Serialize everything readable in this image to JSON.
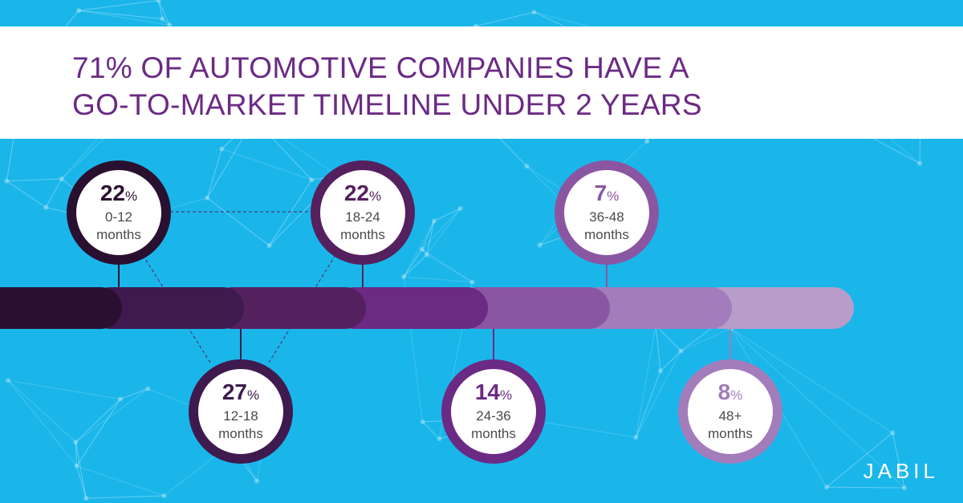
{
  "title": {
    "line1": "71% OF AUTOMOTIVE COMPANIES HAVE A",
    "line2": "GO-TO-MARKET TIMELINE UNDER 2 YEARS"
  },
  "logo": "JABIL",
  "colors": {
    "background": "#1ab6ea",
    "title": "#6b2a84",
    "segments": [
      "#2a1030",
      "#3e1a4e",
      "#55205e",
      "#6b2a84",
      "#8a56a2",
      "#a37cbb",
      "#b89dcb"
    ]
  },
  "chart_data": {
    "type": "bar",
    "categories": [
      "0-12 months",
      "12-18 months",
      "18-24 months",
      "24-36 months",
      "36-48 months",
      "48+ months"
    ],
    "values": [
      22,
      27,
      22,
      14,
      7,
      8
    ],
    "unit": "%",
    "title": "71% OF AUTOMOTIVE COMPANIES HAVE A GO-TO-MARKET TIMELINE UNDER 2 YEARS",
    "items": [
      {
        "value": 22,
        "percent_sign": "%",
        "range": "0-12",
        "unit": "months",
        "position": "above",
        "color": "#2a1030",
        "value_color": "#2a1030"
      },
      {
        "value": 27,
        "percent_sign": "%",
        "range": "12-18",
        "unit": "months",
        "position": "below",
        "color": "#3e1a4e",
        "value_color": "#3e1a4e"
      },
      {
        "value": 22,
        "percent_sign": "%",
        "range": "18-24",
        "unit": "months",
        "position": "above",
        "color": "#55205e",
        "value_color": "#55205e"
      },
      {
        "value": 14,
        "percent_sign": "%",
        "range": "24-36",
        "unit": "months",
        "position": "below",
        "color": "#6b2a84",
        "value_color": "#6b2a84"
      },
      {
        "value": 7,
        "percent_sign": "%",
        "range": "36-48",
        "unit": "months",
        "position": "above",
        "color": "#8a56a2",
        "value_color": "#8a56a2"
      },
      {
        "value": 8,
        "percent_sign": "%",
        "range": "48+",
        "unit": "months",
        "position": "below",
        "color": "#a37cbb",
        "value_color": "#a37cbb"
      }
    ]
  }
}
